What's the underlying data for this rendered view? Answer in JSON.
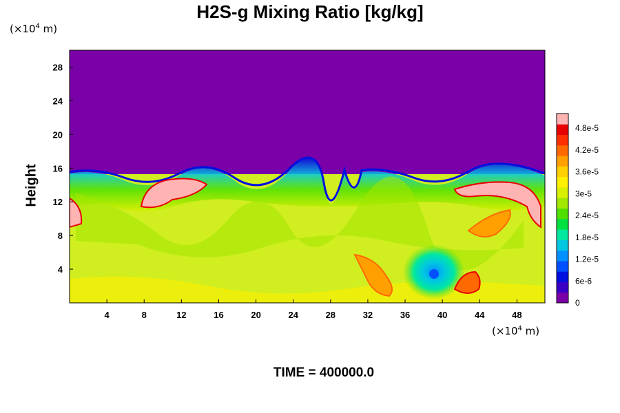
{
  "chart_data": {
    "type": "heatmap",
    "title": "H2S-g Mixing Ratio [kg/kg]",
    "ylabel": "Height",
    "xlabel": "",
    "x_unit": {
      "prefix": "(×10",
      "exp": "4",
      "suffix": " m)"
    },
    "y_unit": {
      "prefix": "(×10",
      "exp": "4",
      "suffix": " m)"
    },
    "xlim": [
      0,
      51
    ],
    "ylim": [
      0,
      30
    ],
    "x_ticks": [
      4,
      8,
      12,
      16,
      20,
      24,
      28,
      32,
      36,
      40,
      44,
      48
    ],
    "y_ticks": [
      4,
      8,
      12,
      16,
      20,
      24,
      28
    ],
    "colorbar": {
      "range": [
        0,
        5.2e-05
      ],
      "ticks": [
        {
          "value": 0,
          "label": "0"
        },
        {
          "value": 6e-06,
          "label": "6e-6"
        },
        {
          "value": 1.2e-05,
          "label": "1.2e-5"
        },
        {
          "value": 1.8e-05,
          "label": "1.8e-5"
        },
        {
          "value": 2.4e-05,
          "label": "2.4e-5"
        },
        {
          "value": 3e-05,
          "label": "3e-5"
        },
        {
          "value": 3.6e-05,
          "label": "3.6e-5"
        },
        {
          "value": 4.2e-05,
          "label": "4.2e-5"
        },
        {
          "value": 4.8e-05,
          "label": "4.8e-5"
        }
      ],
      "colors": [
        "#7a00a8",
        "#3a00c8",
        "#0010e0",
        "#0050ff",
        "#0090ff",
        "#00c8e0",
        "#00e8a0",
        "#00e040",
        "#50e000",
        "#a0e800",
        "#d8f000",
        "#fff000",
        "#ffd000",
        "#ffa000",
        "#ff6a00",
        "#ff3000",
        "#e80000",
        "#ffb4b4"
      ]
    },
    "field_regions": [
      {
        "name": "upper_layer",
        "value": 0,
        "x": [
          0,
          51
        ],
        "y": [
          15.6,
          30
        ]
      },
      {
        "name": "lower_layer",
        "value": 3.3e-05,
        "x": [
          0,
          51
        ],
        "y": [
          0,
          15.6
        ]
      },
      {
        "name": "vortex",
        "value": 1.5e-05,
        "center": [
          39,
          4
        ]
      },
      {
        "name": "high_patch_1",
        "value": 5.2e-05,
        "center": [
          11,
          12.5
        ]
      },
      {
        "name": "high_patch_2",
        "value": 5.2e-05,
        "center": [
          46,
          13.5
        ]
      },
      {
        "name": "high_patch_3",
        "value": 5.2e-05,
        "center": [
          1,
          10.5
        ]
      },
      {
        "name": "plume_1",
        "value": 4.5e-05,
        "center": [
          33,
          3.5
        ]
      },
      {
        "name": "plume_2",
        "value": 4.5e-05,
        "center": [
          43.5,
          2.5
        ]
      }
    ],
    "grid": false
  },
  "footer": {
    "time_label": "TIME = 400000.0"
  }
}
